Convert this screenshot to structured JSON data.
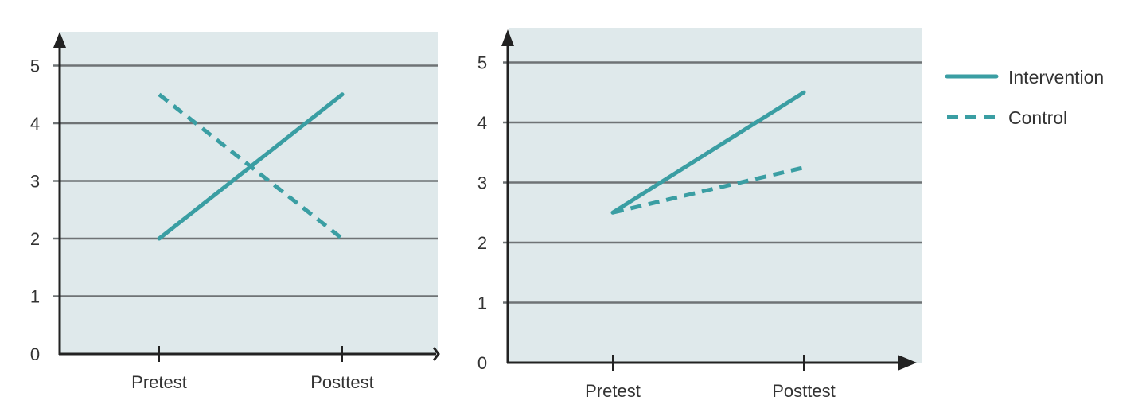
{
  "chart_data": [
    {
      "type": "line",
      "title": "",
      "xlabel": "",
      "ylabel": "",
      "categories": [
        "Pretest",
        "Posttest"
      ],
      "ylim": [
        0,
        5
      ],
      "yticks": [
        "0",
        "1",
        "2",
        "3",
        "4",
        "5"
      ],
      "grid": true,
      "series": [
        {
          "name": "Intervention",
          "style": "solid",
          "values": [
            2,
            4.5
          ]
        },
        {
          "name": "Control",
          "style": "dashed",
          "values": [
            4.5,
            2
          ]
        }
      ]
    },
    {
      "type": "line",
      "title": "",
      "xlabel": "",
      "ylabel": "",
      "categories": [
        "Pretest",
        "Posttest"
      ],
      "ylim": [
        0,
        5
      ],
      "yticks": [
        "0",
        "1",
        "2",
        "3",
        "4",
        "5"
      ],
      "grid": true,
      "series": [
        {
          "name": "Intervention",
          "style": "solid",
          "values": [
            2.5,
            4.5
          ]
        },
        {
          "name": "Control",
          "style": "dashed",
          "values": [
            2.5,
            3.25
          ]
        }
      ]
    }
  ],
  "legend": {
    "position": "right",
    "items": [
      {
        "label": "Intervention",
        "style": "solid"
      },
      {
        "label": "Control",
        "style": "dashed"
      }
    ]
  },
  "colors": {
    "series": "#3a9ea3",
    "plot_bg": "#dfe9eb",
    "grid": "#6f7375",
    "axis": "#222222"
  }
}
